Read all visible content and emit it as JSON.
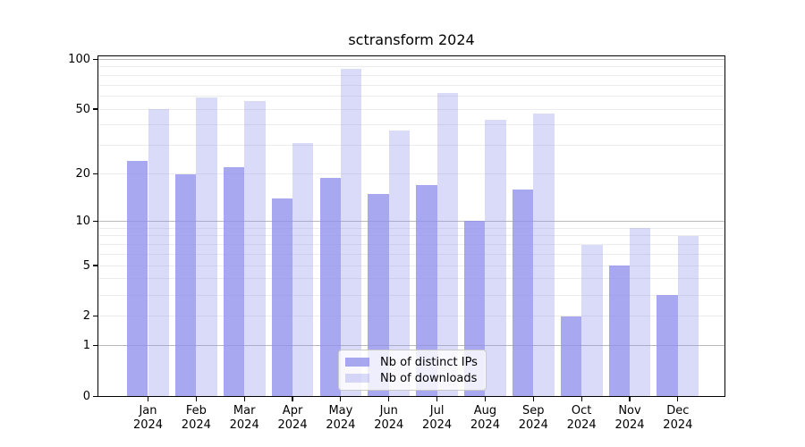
{
  "title": "sctransform 2024",
  "chart_data": {
    "type": "bar",
    "title": "sctransform 2024",
    "categories": [
      "Jan",
      "Feb",
      "Mar",
      "Apr",
      "May",
      "Jun",
      "Jul",
      "Aug",
      "Sep",
      "Oct",
      "Nov",
      "Dec"
    ],
    "category_year_line": "2024",
    "series": [
      {
        "name": "Nb of distinct IPs",
        "values": [
          24,
          20,
          22,
          14,
          19,
          15,
          17,
          10,
          16,
          2,
          5,
          3
        ],
        "color": "rgba(144,144,236,0.78)"
      },
      {
        "name": "Nb of downloads",
        "values": [
          50,
          59,
          56,
          31,
          87,
          37,
          63,
          43,
          47,
          7,
          9,
          8
        ],
        "color": "rgba(144,144,236,0.33)"
      }
    ],
    "yscale": "log1p",
    "ylim": [
      0,
      106
    ],
    "yticks": [
      100,
      50,
      20,
      10,
      5,
      2,
      1,
      0
    ],
    "grid": "horizontal",
    "minor_grid_values": [
      2,
      3,
      4,
      5,
      6,
      7,
      8,
      9,
      20,
      30,
      40,
      50,
      60,
      70,
      80,
      90
    ],
    "major_grid_values": [
      1,
      10,
      100
    ],
    "legend_position": "lower center",
    "colors": {
      "bar_base": "#9090ec",
      "grid_minor": "#ececec",
      "grid_major": "#b9b9b9",
      "axis": "#000000",
      "legend_border": "#c9c9c9"
    }
  }
}
